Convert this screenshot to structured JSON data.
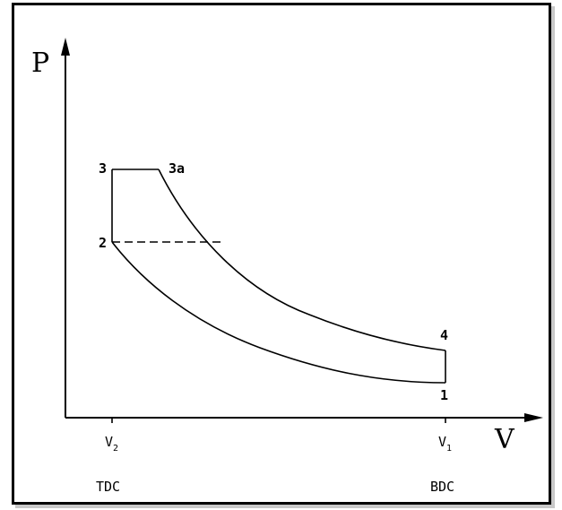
{
  "axes": {
    "y_letter": "P",
    "x_letter": "V"
  },
  "points": {
    "p1": "1",
    "p2": "2",
    "p3": "3",
    "p3a": "3a",
    "p4": "4"
  },
  "volumes": {
    "v2_main": "V",
    "v2_sub": "2",
    "v1_main": "V",
    "v1_sub": "1"
  },
  "positions": {
    "tdc": "TDC",
    "bdc": "BDC"
  },
  "colors": {
    "line": "#000000",
    "background": "#ffffff",
    "frame_shadow": "#c8c8c8"
  }
}
